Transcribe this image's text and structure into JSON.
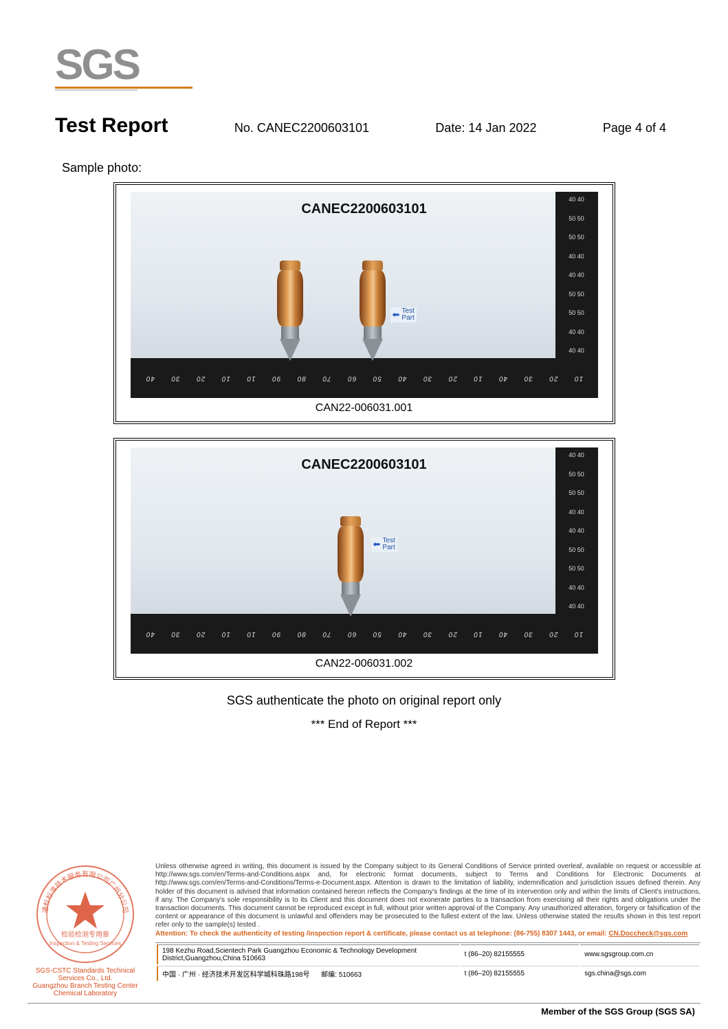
{
  "logo": {
    "text": "SGS",
    "fill": "#8f8f8f",
    "accent": "#d97a1f"
  },
  "header": {
    "title": "Test Report",
    "report_no_label": "No.",
    "report_no": "CANEC2200603101",
    "date_label": "Date:",
    "date": "14 Jan 2022",
    "page_label": "Page",
    "page": "4 of 4"
  },
  "sample_photo_label": "Sample photo:",
  "photos": [
    {
      "overlay_id": "CANEC2200603101",
      "caption": "CAN22-006031.001",
      "probes": 2,
      "test_part_label": "Test\nPart"
    },
    {
      "overlay_id": "CANEC2200603101",
      "caption": "CAN22-006031.002",
      "probes": 1,
      "test_part_label": "Test\nPart"
    }
  ],
  "ruler_h_marks": [
    "10",
    "20",
    "30",
    "40",
    "10",
    "20",
    "30",
    "40",
    "50",
    "60",
    "70",
    "80",
    "90",
    "10",
    "10",
    "20",
    "30",
    "40"
  ],
  "ruler_v_marks": [
    "40 40",
    "50 50",
    "50 50",
    "40 40",
    "40 40",
    "50 50",
    "50 50",
    "40 40",
    "40 40"
  ],
  "auth_line": "SGS authenticate the photo on original report only",
  "end_line": "*** End of Report ***",
  "stamp": {
    "ring_text_top": "检验检测专用章",
    "ring_text_bottom": "Inspection & Testing Services",
    "line1": "SGS-CSTC Standards Technical Services Co., Ltd.",
    "line2": "Guangzhou Branch Testing Center Chemical Laboratory"
  },
  "disclaimer": {
    "body": "Unless otherwise agreed in writing, this document is issued by the Company subject to its General Conditions of Service printed overleaf, available on request or accessible at http://www.sgs.com/en/Terms-and-Conditions.aspx and, for electronic format documents, subject to Terms and Conditions for Electronic Documents at http://www.sgs.com/en/Terms-and-Conditions/Terms-e-Document.aspx. Attention is drawn to the limitation of liability, indemnification and jurisdiction issues defined therein. Any holder of this document is advised that information contained hereon reflects the Company's findings at the time of its intervention only and within the limits of Client's instructions, if any. The Company's sole responsibility is to its Client and this document does not exonerate parties to a transaction from exercising all their rights and obligations under the transaction documents. This document cannot be reproduced except in full, without prior written approval of the Company. Any unauthorized alteration, forgery or falsification of the content or appearance of this document is unlawful and offenders may be prosecuted to the fullest extent of the law. Unless otherwise stated the results shown in this test report refer only to the sample(s) tested .",
    "attention": "Attention: To check the authenticity of testing /inspection report & certificate, please contact us at telephone: (86-755) 8307 1443, or email: ",
    "attention_mail": "CN.Doccheck@sgs.com"
  },
  "address": {
    "row1": {
      "addr_en": "198 Kezhu Road,Scientech Park Guangzhou Economic & Technology Development District,Guangzhou,China 510663",
      "tel": "t (86–20) 82155555",
      "web": "www.sgsgroup.com.cn"
    },
    "row2": {
      "addr_cn": "中国 · 广州 · 经济技术开发区科学城科珠路198号",
      "post_label": "邮编:",
      "post": "510663",
      "tel": "t (86–20) 82155555",
      "web": "sgs.china@sgs.com"
    }
  },
  "member_line": "Member of the SGS Group (SGS SA)"
}
